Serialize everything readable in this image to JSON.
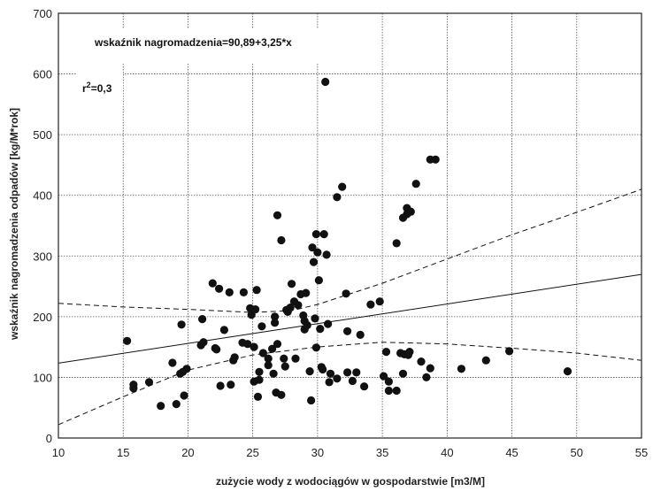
{
  "chart_data": {
    "type": "scatter",
    "xlabel": "zużycie wody z wodociągów w gospodarstwie [m3/M]",
    "ylabel": "wskaźnik nagromadzenia odpadów [kg/M*rok]",
    "xlim": [
      10,
      55
    ],
    "ylim": [
      0,
      700
    ],
    "xticks": [
      10,
      15,
      20,
      25,
      30,
      35,
      40,
      45,
      50,
      55
    ],
    "yticks": [
      0,
      100,
      200,
      300,
      400,
      500,
      600,
      700
    ],
    "grid": "dotted",
    "annotations": {
      "equation": "wskaźnik nagromadzenia=90,89+3,25*x",
      "r2_prefix": "r",
      "r2_sup": "2",
      "r2_suffix": "=0,3"
    },
    "regression": {
      "intercept": 90.89,
      "slope": 3.25
    },
    "confidence_upper": [
      [
        10,
        222
      ],
      [
        15,
        216
      ],
      [
        20,
        212
      ],
      [
        25,
        207
      ],
      [
        28,
        210
      ],
      [
        30,
        220
      ],
      [
        35,
        255
      ],
      [
        40,
        295
      ],
      [
        45,
        335
      ],
      [
        50,
        372
      ],
      [
        55,
        410
      ]
    ],
    "confidence_lower": [
      [
        10,
        22
      ],
      [
        15,
        68
      ],
      [
        20,
        112
      ],
      [
        25,
        137
      ],
      [
        30,
        150
      ],
      [
        35,
        158
      ],
      [
        40,
        155
      ],
      [
        45,
        148
      ],
      [
        50,
        140
      ],
      [
        55,
        128
      ]
    ],
    "points": [
      [
        15.3,
        160
      ],
      [
        15.8,
        88
      ],
      [
        15.8,
        82
      ],
      [
        17,
        92
      ],
      [
        17.9,
        53
      ],
      [
        18.8,
        124
      ],
      [
        19.1,
        56
      ],
      [
        19.4,
        106
      ],
      [
        19.5,
        187
      ],
      [
        19.6,
        109
      ],
      [
        19.7,
        70
      ],
      [
        19.9,
        114
      ],
      [
        21,
        153
      ],
      [
        21.1,
        196
      ],
      [
        21.2,
        158
      ],
      [
        21.9,
        255
      ],
      [
        22.1,
        148
      ],
      [
        22.2,
        146
      ],
      [
        22.4,
        246
      ],
      [
        22.5,
        86
      ],
      [
        22.8,
        178
      ],
      [
        23.2,
        240
      ],
      [
        23.3,
        88
      ],
      [
        23.5,
        128
      ],
      [
        23.6,
        133
      ],
      [
        24.2,
        157
      ],
      [
        24.3,
        240
      ],
      [
        24.6,
        155
      ],
      [
        24.8,
        214
      ],
      [
        24.9,
        203
      ],
      [
        25.1,
        150
      ],
      [
        25.1,
        93
      ],
      [
        25.2,
        212
      ],
      [
        25.3,
        244
      ],
      [
        25.4,
        68
      ],
      [
        25.5,
        109
      ],
      [
        25.5,
        96
      ],
      [
        25.7,
        184
      ],
      [
        25.8,
        140
      ],
      [
        26.2,
        120
      ],
      [
        26.2,
        131
      ],
      [
        26.5,
        147
      ],
      [
        26.6,
        106
      ],
      [
        26.7,
        200
      ],
      [
        26.7,
        190
      ],
      [
        26.8,
        75
      ],
      [
        26.9,
        155
      ],
      [
        26.9,
        367
      ],
      [
        27.2,
        71
      ],
      [
        27.2,
        326
      ],
      [
        27.4,
        131
      ],
      [
        27.5,
        118
      ],
      [
        27.6,
        211
      ],
      [
        27.7,
        208
      ],
      [
        27.9,
        215
      ],
      [
        28,
        254
      ],
      [
        28.2,
        225
      ],
      [
        28.3,
        131
      ],
      [
        28.5,
        219
      ],
      [
        28.7,
        237
      ],
      [
        28.9,
        202
      ],
      [
        29,
        193
      ],
      [
        29,
        179
      ],
      [
        29.1,
        239
      ],
      [
        29.2,
        186
      ],
      [
        29.4,
        110
      ],
      [
        29.5,
        62
      ],
      [
        29.6,
        314
      ],
      [
        29.7,
        290
      ],
      [
        29.8,
        197
      ],
      [
        29.9,
        336
      ],
      [
        29.9,
        149
      ],
      [
        30,
        306
      ],
      [
        30.1,
        260
      ],
      [
        30.2,
        180
      ],
      [
        30.3,
        117
      ],
      [
        30.4,
        113
      ],
      [
        30.5,
        336
      ],
      [
        30.6,
        587
      ],
      [
        30.7,
        302
      ],
      [
        30.8,
        188
      ],
      [
        30.9,
        92
      ],
      [
        31,
        106
      ],
      [
        31.5,
        397
      ],
      [
        31.5,
        98
      ],
      [
        31.9,
        414
      ],
      [
        32.2,
        238
      ],
      [
        32.3,
        108
      ],
      [
        32.3,
        176
      ],
      [
        32.7,
        94
      ],
      [
        33,
        108
      ],
      [
        33.3,
        170
      ],
      [
        33.6,
        85
      ],
      [
        34.1,
        220
      ],
      [
        34.8,
        225
      ],
      [
        35.1,
        102
      ],
      [
        35.3,
        142
      ],
      [
        35.5,
        93
      ],
      [
        35.5,
        78
      ],
      [
        36.1,
        78
      ],
      [
        36.1,
        321
      ],
      [
        36.4,
        140
      ],
      [
        36.6,
        363
      ],
      [
        36.6,
        106
      ],
      [
        36.7,
        138
      ],
      [
        36.9,
        379
      ],
      [
        36.9,
        369
      ],
      [
        37,
        137
      ],
      [
        37.1,
        142
      ],
      [
        37.2,
        373
      ],
      [
        37.6,
        419
      ],
      [
        38,
        126
      ],
      [
        38.4,
        100
      ],
      [
        38.7,
        459
      ],
      [
        38.7,
        115
      ],
      [
        39.1,
        459
      ],
      [
        41.1,
        114
      ],
      [
        43,
        128
      ],
      [
        44.8,
        143
      ],
      [
        49.3,
        110
      ]
    ]
  }
}
